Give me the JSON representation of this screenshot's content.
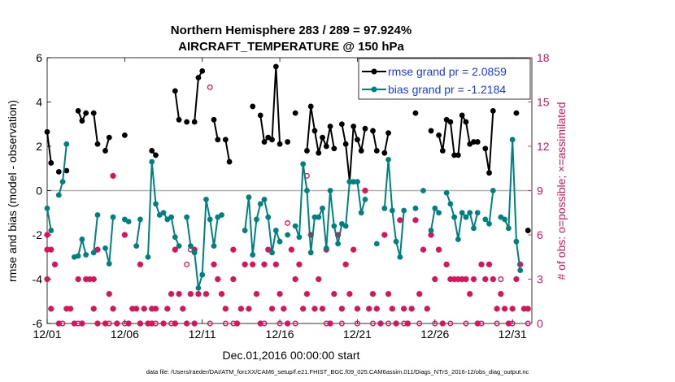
{
  "title_line1": "Northern Hemisphere 283 / 289 = 97.924%",
  "title_line2": "AIRCRAFT_TEMPERATURE @ 150 hPa",
  "xlabel": "Dec.01,2016 00:00:00 start",
  "ylabel_left": "rmse and bias (model - observation)",
  "ylabel_right": "# of obs: o=possible; ×=assimilated",
  "footer": "data file: /Users/raeder/DAI/ATM_forcXX/CAM6_setup/f.e21.FHIST_BGC.f09_025.CAM6assim.011/Diags_NTrS_2016-12/obs_diag_output.nc",
  "colors": {
    "rmse": "#000000",
    "bias": "#008080",
    "obs": "#d6155c",
    "legend_text": "#1a3ae6"
  },
  "chart_data": {
    "type": "line",
    "x_ticks": [
      {
        "x": 0,
        "label": "12/01"
      },
      {
        "x": 5,
        "label": "12/06"
      },
      {
        "x": 10,
        "label": "12/11"
      },
      {
        "x": 15,
        "label": "12/16"
      },
      {
        "x": 20,
        "label": "12/21"
      },
      {
        "x": 25,
        "label": "12/26"
      },
      {
        "x": 30,
        "label": "12/31"
      }
    ],
    "xlim": [
      0,
      31.25
    ],
    "ylim_left": [
      -6,
      6
    ],
    "yticks_left": [
      "-6",
      "-4",
      "-2",
      "0",
      "2",
      "4",
      "6"
    ],
    "ylim_right": [
      0,
      18
    ],
    "yticks_right": [
      "0",
      "3",
      "6",
      "9",
      "12",
      "15",
      "18"
    ],
    "zero_line": 0,
    "legend": [
      "rmse grand pr = 2.0859",
      "bias grand pr = -1.2184"
    ],
    "series": [
      {
        "name": "rmse grand pr = 2.0859",
        "points": [
          [
            0.0,
            2.65
          ],
          [
            0.25,
            1.25
          ],
          [
            0.75,
            0.85
          ],
          [
            1.25,
            0.9
          ],
          [
            2.0,
            3.6
          ],
          [
            2.25,
            3.15
          ],
          [
            2.5,
            3.5
          ],
          [
            3.0,
            3.5
          ],
          [
            3.25,
            2.1
          ],
          [
            3.75,
            1.8
          ],
          [
            4.0,
            2.4
          ],
          [
            5.0,
            2.5
          ],
          [
            6.75,
            1.8
          ],
          [
            7.0,
            1.6
          ],
          [
            8.25,
            4.5
          ],
          [
            8.5,
            3.2
          ],
          [
            9.0,
            3.1
          ],
          [
            9.5,
            3.1
          ],
          [
            9.75,
            5.1
          ],
          [
            10.0,
            5.4
          ],
          [
            10.75,
            3.2
          ],
          [
            11.0,
            2.3
          ],
          [
            11.5,
            2.3
          ],
          [
            11.75,
            1.3
          ],
          [
            13.25,
            3.8
          ],
          [
            13.75,
            3.4
          ],
          [
            14.0,
            2.2
          ],
          [
            14.25,
            2.4
          ],
          [
            14.5,
            2.3
          ],
          [
            14.75,
            5.6
          ],
          [
            15.0,
            2.1
          ],
          [
            15.5,
            2.2
          ],
          [
            16.0,
            3.5
          ],
          [
            16.75,
            1.8
          ],
          [
            17.0,
            3.8
          ],
          [
            17.25,
            2.7
          ],
          [
            17.5,
            1.7
          ],
          [
            17.75,
            2.4
          ],
          [
            18.0,
            2.0
          ],
          [
            18.25,
            2.9
          ],
          [
            18.5,
            1.9
          ],
          [
            19.0,
            3.0
          ],
          [
            19.25,
            2.1
          ],
          [
            19.5,
            0.4
          ],
          [
            19.75,
            2.9
          ],
          [
            20.0,
            2.3
          ],
          [
            20.25,
            1.8
          ],
          [
            20.5,
            2.8
          ],
          [
            21.0,
            2.7
          ],
          [
            21.25,
            1.8
          ],
          [
            21.75,
            1.7
          ],
          [
            22.0,
            2.6
          ],
          [
            23.75,
            3.5
          ],
          [
            24.75,
            2.7
          ],
          [
            25.25,
            2.5
          ],
          [
            25.5,
            1.8
          ],
          [
            25.75,
            3.2
          ],
          [
            26.0,
            3.1
          ],
          [
            26.25,
            1.6
          ],
          [
            26.5,
            1.6
          ],
          [
            26.75,
            3.4
          ],
          [
            27.0,
            3.1
          ],
          [
            27.25,
            2.1
          ],
          [
            27.5,
            2.2
          ],
          [
            27.75,
            2.2
          ],
          [
            28.25,
            1.9
          ],
          [
            28.5,
            0.8
          ],
          [
            28.75,
            3.6
          ],
          [
            30.25,
            3.5
          ],
          [
            31.0,
            -1.8
          ]
        ]
      },
      {
        "name": "bias grand pr = -1.2184",
        "points": [
          [
            0.0,
            -0.8
          ],
          [
            0.25,
            -1.8
          ],
          [
            0.75,
            -0.2
          ],
          [
            1.0,
            0.4
          ],
          [
            1.25,
            2.1
          ],
          [
            1.75,
            -3.0
          ],
          [
            2.0,
            -2.95
          ],
          [
            2.25,
            -2.2
          ],
          [
            2.5,
            -2.9
          ],
          [
            3.0,
            -2.8
          ],
          [
            3.25,
            -1.1
          ],
          [
            3.75,
            -2.6
          ],
          [
            4.0,
            -3.3
          ],
          [
            4.25,
            -1.2
          ],
          [
            5.0,
            -1.3
          ],
          [
            5.25,
            -1.4
          ],
          [
            5.75,
            -2.5
          ],
          [
            6.0,
            -1.3
          ],
          [
            6.5,
            -3.0
          ],
          [
            6.75,
            1.3
          ],
          [
            7.0,
            -0.6
          ],
          [
            7.25,
            -1.1
          ],
          [
            7.5,
            -1.0
          ],
          [
            7.75,
            -1.3
          ],
          [
            8.0,
            -1.2
          ],
          [
            8.25,
            -2.1
          ],
          [
            8.5,
            -2.5
          ],
          [
            9.0,
            -1.2
          ],
          [
            9.25,
            -2.5
          ],
          [
            9.5,
            -2.8
          ],
          [
            9.75,
            -4.4
          ],
          [
            10.0,
            -3.8
          ],
          [
            10.25,
            -0.4
          ],
          [
            10.5,
            -1.3
          ],
          [
            10.75,
            -2.5
          ],
          [
            11.0,
            -1.2
          ],
          [
            11.25,
            -1.1
          ],
          [
            12.75,
            -1.8
          ],
          [
            13.0,
            -0.3
          ],
          [
            13.25,
            -2.9
          ],
          [
            13.5,
            -1.3
          ],
          [
            13.75,
            -0.6
          ],
          [
            14.0,
            -0.4
          ],
          [
            14.25,
            -1.2
          ],
          [
            14.5,
            -2.8
          ],
          [
            14.75,
            -1.8
          ],
          [
            15.0,
            -2.3
          ],
          [
            15.5,
            -2.0
          ],
          [
            16.0,
            -1.6
          ],
          [
            16.25,
            -2.1
          ],
          [
            16.5,
            1.2
          ],
          [
            16.75,
            0.0
          ],
          [
            17.0,
            -2.8
          ],
          [
            17.25,
            -1.2
          ],
          [
            17.5,
            -1.2
          ],
          [
            17.75,
            -0.8
          ],
          [
            18.0,
            -2.6
          ],
          [
            18.25,
            0.0
          ],
          [
            18.5,
            -1.6
          ],
          [
            18.75,
            -2.4
          ],
          [
            19.0,
            -1.5
          ],
          [
            19.25,
            -1.6
          ],
          [
            19.5,
            0.4
          ],
          [
            19.75,
            0.4
          ],
          [
            20.0,
            0.4
          ],
          [
            20.25,
            -1.0
          ],
          [
            20.5,
            -0.4
          ],
          [
            21.25,
            -2.4
          ],
          [
            21.75,
            -0.8
          ],
          [
            22.0,
            1.4
          ],
          [
            22.25,
            -0.9
          ],
          [
            22.5,
            -2.3
          ],
          [
            22.75,
            -3.0
          ],
          [
            23.0,
            -0.9
          ],
          [
            23.75,
            -0.8
          ],
          [
            24.25,
            0.0
          ],
          [
            24.75,
            -1.8
          ],
          [
            25.0,
            -0.8
          ],
          [
            25.25,
            -1.0
          ],
          [
            25.75,
            -0.1
          ],
          [
            26.0,
            -0.6
          ],
          [
            26.25,
            -1.2
          ],
          [
            26.5,
            -2.2
          ],
          [
            26.75,
            -1.0
          ],
          [
            27.0,
            -1.2
          ],
          [
            27.25,
            -1.0
          ],
          [
            27.5,
            -1.7
          ],
          [
            27.75,
            -1.0
          ],
          [
            28.25,
            -1.3
          ],
          [
            28.5,
            -1.5
          ],
          [
            28.75,
            0.0
          ],
          [
            29.25,
            -1.2
          ],
          [
            29.5,
            -1.3
          ],
          [
            29.75,
            -1.7
          ],
          [
            30.0,
            2.3
          ],
          [
            30.25,
            -2.3
          ],
          [
            30.5,
            -3.6
          ]
        ]
      }
    ],
    "obs_possible": [
      [
        1,
        0
      ],
      [
        2,
        0
      ],
      [
        4,
        0
      ],
      [
        5,
        0
      ],
      [
        6,
        0
      ],
      [
        7,
        0
      ],
      [
        8,
        0
      ],
      [
        10.5,
        0
      ],
      [
        11.5,
        0
      ],
      [
        12,
        0
      ],
      [
        14,
        0
      ],
      [
        15,
        0
      ],
      [
        16,
        0
      ],
      [
        18,
        0
      ],
      [
        19,
        0
      ],
      [
        20,
        0
      ],
      [
        21,
        0
      ],
      [
        22,
        0
      ],
      [
        23,
        0
      ],
      [
        24,
        0
      ],
      [
        25,
        0
      ],
      [
        26,
        0
      ],
      [
        27,
        0
      ],
      [
        28,
        0
      ],
      [
        29,
        0
      ],
      [
        30,
        0
      ],
      [
        31,
        0
      ],
      [
        9,
        4
      ],
      [
        9.25,
        5
      ],
      [
        15.5,
        6.8
      ],
      [
        16.75,
        10
      ],
      [
        29.25,
        3
      ],
      [
        10.5,
        16
      ]
    ],
    "obs_assimilated": [
      [
        0,
        3
      ],
      [
        0,
        5
      ],
      [
        0,
        6
      ],
      [
        0.25,
        1
      ],
      [
        0.25,
        5
      ],
      [
        0.5,
        4
      ],
      [
        0.75,
        0
      ],
      [
        1.25,
        1
      ],
      [
        1.5,
        1
      ],
      [
        1.75,
        0
      ],
      [
        2,
        3
      ],
      [
        2.25,
        0
      ],
      [
        2.5,
        3
      ],
      [
        2.75,
        3
      ],
      [
        3,
        1
      ],
      [
        3,
        3
      ],
      [
        3.25,
        0
      ],
      [
        3.25,
        5
      ],
      [
        3.75,
        0
      ],
      [
        4,
        2
      ],
      [
        4.25,
        1
      ],
      [
        4.25,
        10
      ],
      [
        4.5,
        0
      ],
      [
        5,
        6
      ],
      [
        5.25,
        0
      ],
      [
        5.5,
        1
      ],
      [
        5.75,
        1
      ],
      [
        6,
        4
      ],
      [
        6,
        0
      ],
      [
        6.25,
        1
      ],
      [
        6.5,
        0
      ],
      [
        6.75,
        0
      ],
      [
        6.75,
        1
      ],
      [
        7,
        1
      ],
      [
        7.5,
        0
      ],
      [
        7.75,
        1
      ],
      [
        8,
        2
      ],
      [
        8.25,
        0
      ],
      [
        8.25,
        5
      ],
      [
        8.5,
        2
      ],
      [
        8.75,
        1
      ],
      [
        9,
        0
      ],
      [
        9.25,
        2
      ],
      [
        9.5,
        0
      ],
      [
        9.5,
        5
      ],
      [
        9.75,
        2
      ],
      [
        10.25,
        2
      ],
      [
        10.75,
        4
      ],
      [
        11,
        3
      ],
      [
        11.25,
        2
      ],
      [
        11.5,
        1
      ],
      [
        12,
        3
      ],
      [
        12,
        5
      ],
      [
        12.25,
        0
      ],
      [
        12.5,
        1
      ],
      [
        12.75,
        4
      ],
      [
        13,
        1
      ],
      [
        13.25,
        4
      ],
      [
        13.5,
        2
      ],
      [
        13.75,
        0
      ],
      [
        14,
        4
      ],
      [
        14.25,
        5
      ],
      [
        14.5,
        1
      ],
      [
        14.75,
        4
      ],
      [
        15,
        2
      ],
      [
        15.25,
        1
      ],
      [
        15.5,
        0
      ],
      [
        15.75,
        5
      ],
      [
        16,
        3
      ],
      [
        16.25,
        4
      ],
      [
        16.5,
        1
      ],
      [
        16.75,
        2
      ],
      [
        17,
        6
      ],
      [
        17.25,
        1
      ],
      [
        17.5,
        3
      ],
      [
        17.75,
        1
      ],
      [
        18,
        5
      ],
      [
        18.25,
        0
      ],
      [
        18.5,
        2
      ],
      [
        18.75,
        6
      ],
      [
        19,
        1
      ],
      [
        19.25,
        4
      ],
      [
        19.5,
        2
      ],
      [
        19.75,
        5
      ],
      [
        20,
        1
      ],
      [
        20.5,
        9
      ],
      [
        20.75,
        1
      ],
      [
        21,
        2
      ],
      [
        21.25,
        1
      ],
      [
        21.5,
        0
      ],
      [
        21.75,
        6
      ],
      [
        22,
        2
      ],
      [
        22.25,
        1
      ],
      [
        22.5,
        0
      ],
      [
        22.75,
        7
      ],
      [
        23,
        1
      ],
      [
        23.25,
        0
      ],
      [
        23.5,
        1
      ],
      [
        23.75,
        7
      ],
      [
        24,
        2
      ],
      [
        24.25,
        5
      ],
      [
        24.5,
        1
      ],
      [
        24.75,
        6
      ],
      [
        25,
        3
      ],
      [
        25.25,
        5
      ],
      [
        25.5,
        0
      ],
      [
        25.75,
        4
      ],
      [
        26,
        3
      ],
      [
        26.25,
        3
      ],
      [
        26.5,
        3
      ],
      [
        26.75,
        3
      ],
      [
        27,
        3
      ],
      [
        27.25,
        2
      ],
      [
        27.5,
        3
      ],
      [
        27.75,
        0
      ],
      [
        28,
        4
      ],
      [
        28.25,
        3
      ],
      [
        28.5,
        4
      ],
      [
        28.75,
        3
      ],
      [
        29,
        1
      ],
      [
        29.25,
        2
      ],
      [
        29.5,
        1
      ],
      [
        29.75,
        0
      ],
      [
        30,
        1
      ],
      [
        30.25,
        3
      ],
      [
        30.5,
        4
      ],
      [
        30.75,
        1
      ],
      [
        31,
        1
      ]
    ]
  }
}
